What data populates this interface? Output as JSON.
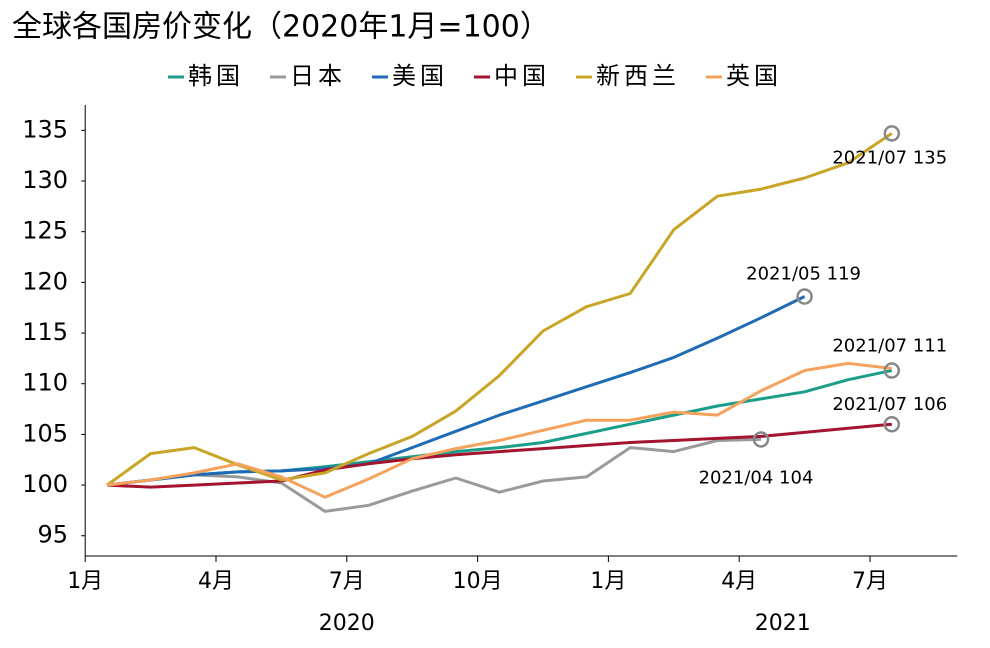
{
  "chart_data": {
    "type": "line",
    "title": "全球各国房价变化（2020年1月=100）",
    "x": [
      "2020/01",
      "2020/02",
      "2020/03",
      "2020/04",
      "2020/05",
      "2020/06",
      "2020/07",
      "2020/08",
      "2020/09",
      "2020/10",
      "2020/11",
      "2020/12",
      "2021/01",
      "2021/02",
      "2021/03",
      "2021/04",
      "2021/05",
      "2021/06",
      "2021/07"
    ],
    "xticks": [
      {
        "value": "2020/01",
        "label": "1月"
      },
      {
        "value": "2020/04",
        "label": "4月"
      },
      {
        "value": "2020/07",
        "label": "7月"
      },
      {
        "value": "2020/10",
        "label": "10月"
      },
      {
        "value": "2021/01",
        "label": "1月"
      },
      {
        "value": "2021/04",
        "label": "4月"
      },
      {
        "value": "2021/07",
        "label": "7月"
      }
    ],
    "years": [
      "2020",
      "2021"
    ],
    "ylim": [
      93,
      137.5
    ],
    "yticks": [
      95,
      100,
      105,
      110,
      115,
      120,
      125,
      130,
      135
    ],
    "grid": false,
    "legend": "top",
    "series": [
      {
        "name": "韩国",
        "color": "#1a9e8a",
        "values": [
          100,
          100.5,
          101,
          101.3,
          101.4,
          101.8,
          102.3,
          102.8,
          103.3,
          103.7,
          104.2,
          105.1,
          106,
          106.9,
          107.8,
          108.5,
          109.2,
          110.4,
          111.3
        ]
      },
      {
        "name": "日本",
        "color": "#9a9a9a",
        "values": [
          100,
          100.5,
          101,
          100.8,
          100.2,
          97.4,
          98,
          99.4,
          100.7,
          99.3,
          100.4,
          100.8,
          103.7,
          103.3,
          104.4,
          104.5,
          null,
          null,
          null
        ]
      },
      {
        "name": "美国",
        "color": "#1f6bb5",
        "values": [
          100,
          100.5,
          101,
          101.3,
          101.4,
          101.6,
          102.1,
          103.7,
          105.3,
          106.9,
          108.3,
          109.7,
          111.1,
          112.6,
          114.5,
          116.5,
          118.6,
          null,
          null
        ]
      },
      {
        "name": "中国",
        "color": "#a3142f",
        "values": [
          100,
          99.8,
          100,
          100.2,
          100.4,
          101.5,
          102.1,
          102.6,
          103,
          103.3,
          103.6,
          103.9,
          104.2,
          104.4,
          104.6,
          104.8,
          105.2,
          105.6,
          106
        ]
      },
      {
        "name": "新西兰",
        "color": "#c8a526",
        "values": [
          100,
          103.1,
          103.7,
          102,
          100.5,
          101.2,
          103.1,
          104.8,
          107.3,
          110.8,
          115.2,
          117.6,
          118.9,
          125.2,
          128.5,
          129.2,
          130.3,
          131.8,
          134.7
        ]
      },
      {
        "name": "英国",
        "color": "#f5a25d",
        "values": [
          100,
          100.5,
          101.2,
          102.1,
          100.8,
          98.8,
          100.6,
          102.6,
          103.6,
          104.4,
          105.4,
          106.4,
          106.4,
          107.2,
          106.9,
          109.3,
          111.3,
          112,
          111.5
        ]
      }
    ],
    "annotations": [
      "2021/07 135",
      "2021/05 119",
      "2021/07 111",
      "2021/07 106",
      "2021/04 104"
    ]
  }
}
